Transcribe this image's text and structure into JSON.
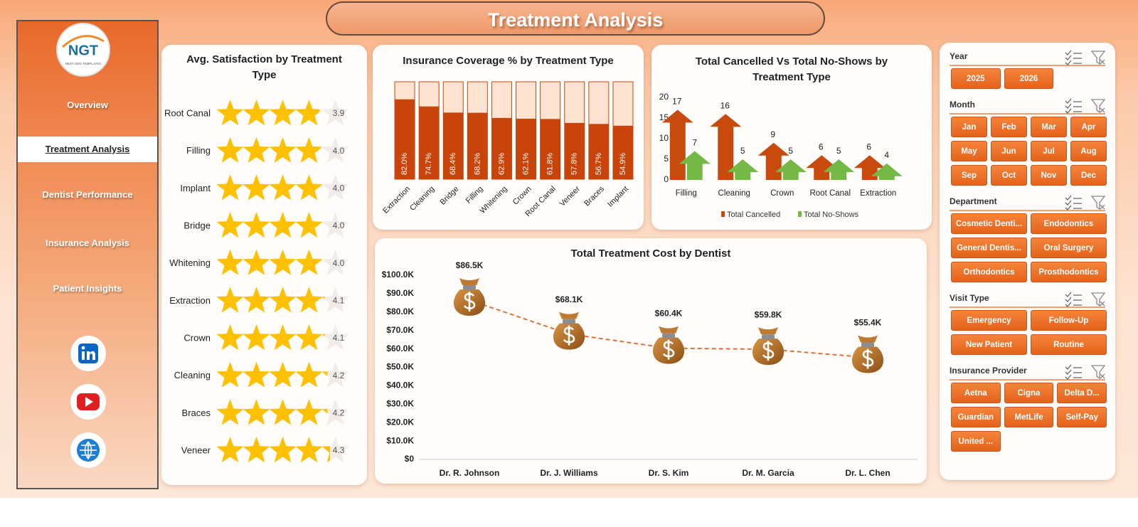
{
  "header": {
    "title": "Treatment Analysis"
  },
  "logo": {
    "text": "NGT",
    "tagline": "NEXT GEN TEMPLATES"
  },
  "nav": {
    "items": [
      "Overview",
      "Treatment Analysis",
      "Dentist Performance",
      "Insurance Analysis",
      "Patient Insights"
    ],
    "active": 1
  },
  "chart_data": [
    {
      "type": "rating",
      "title": "Avg. Satisfaction by Treatment Type",
      "categories": [
        "Root Canal",
        "Filling",
        "Implant",
        "Bridge",
        "Whitening",
        "Extraction",
        "Crown",
        "Cleaning",
        "Braces",
        "Veneer"
      ],
      "values": [
        3.9,
        4.0,
        4.0,
        4.0,
        4.0,
        4.1,
        4.1,
        4.2,
        4.2,
        4.3
      ],
      "value_labels": [
        "3.9",
        "4.0",
        "4.0",
        "4.0",
        "4.0",
        "4.1",
        "4.1",
        "4.2",
        "4.2",
        "4.3"
      ],
      "xlim": [
        0,
        5
      ],
      "color": "#ffc000"
    },
    {
      "type": "bar",
      "title": "Insurance Coverage % by Treatment Type",
      "categories": [
        "Extraction",
        "Cleaning",
        "Bridge",
        "Filling",
        "Whitening",
        "Crown",
        "Root Canal",
        "Veneer",
        "Braces",
        "Implant"
      ],
      "values": [
        82.0,
        74.7,
        68.4,
        68.2,
        62.9,
        62.1,
        61.8,
        57.8,
        56.7,
        54.9
      ],
      "value_labels": [
        "82.0%",
        "74.7%",
        "68.4%",
        "68.2%",
        "62.9%",
        "62.1%",
        "61.8%",
        "57.8%",
        "56.7%",
        "54.9%"
      ],
      "ylim": [
        0,
        100
      ],
      "color": "#c8440a"
    },
    {
      "type": "arrow-bar",
      "title": "Total Cancelled Vs Total No-Shows by Treatment Type",
      "categories": [
        "Filling",
        "Cleaning",
        "Crown",
        "Root Canal",
        "Extraction"
      ],
      "series": [
        {
          "name": "Total Cancelled",
          "color": "#c94a0d",
          "values": [
            17,
            16,
            9,
            6,
            6
          ]
        },
        {
          "name": "Total No-Shows",
          "color": "#74b846",
          "values": [
            7,
            5,
            5,
            5,
            4
          ]
        }
      ],
      "ylim": [
        0,
        20
      ],
      "yticks": [
        0,
        5,
        10,
        15,
        20
      ],
      "legend": "bottom"
    },
    {
      "type": "line",
      "title": "Total Treatment Cost by Dentist",
      "categories": [
        "Dr. R. Johnson",
        "Dr. J. Williams",
        "Dr. S. Kim",
        "Dr. M. Garcia",
        "Dr. L. Chen"
      ],
      "values": [
        86500,
        68100,
        60400,
        59800,
        55400
      ],
      "value_labels": [
        "$86.5K",
        "$68.1K",
        "$60.4K",
        "$59.8K",
        "$55.4K"
      ],
      "ylim": [
        0,
        100000
      ],
      "yticks": [
        {
          "value": 0,
          "label": "$0"
        },
        {
          "value": 10000,
          "label": "$10.0K"
        },
        {
          "value": 20000,
          "label": "$20.0K"
        },
        {
          "value": 30000,
          "label": "$30.0K"
        },
        {
          "value": 40000,
          "label": "$40.0K"
        },
        {
          "value": 50000,
          "label": "$50.0K"
        },
        {
          "value": 60000,
          "label": "$60.0K"
        },
        {
          "value": 70000,
          "label": "$70.0K"
        },
        {
          "value": 80000,
          "label": "$80.0K"
        },
        {
          "value": 90000,
          "label": "$90.0K"
        },
        {
          "value": 100000,
          "label": "$100.0K"
        }
      ],
      "color": "#e0703a"
    }
  ],
  "slicers": [
    {
      "title": "Year",
      "items": [
        "2025",
        "2026"
      ]
    },
    {
      "title": "Month",
      "items": [
        "Jan",
        "Feb",
        "Mar",
        "Apr",
        "May",
        "Jun",
        "Jul",
        "Aug",
        "Sep",
        "Oct",
        "Nov",
        "Dec"
      ]
    },
    {
      "title": "Department",
      "items": [
        "Cosmetic Denti...",
        "Endodontics",
        "General Dentis...",
        "Oral Surgery",
        "Orthodontics",
        "Prosthodontics"
      ]
    },
    {
      "title": "Visit Type",
      "items": [
        "Emergency",
        "Follow-Up",
        "New Patient",
        "Routine"
      ]
    },
    {
      "title": "Insurance Provider",
      "items": [
        "Aetna",
        "Cigna",
        "Delta D...",
        "Guardian",
        "MetLife",
        "Self-Pay",
        "United ..."
      ]
    }
  ]
}
